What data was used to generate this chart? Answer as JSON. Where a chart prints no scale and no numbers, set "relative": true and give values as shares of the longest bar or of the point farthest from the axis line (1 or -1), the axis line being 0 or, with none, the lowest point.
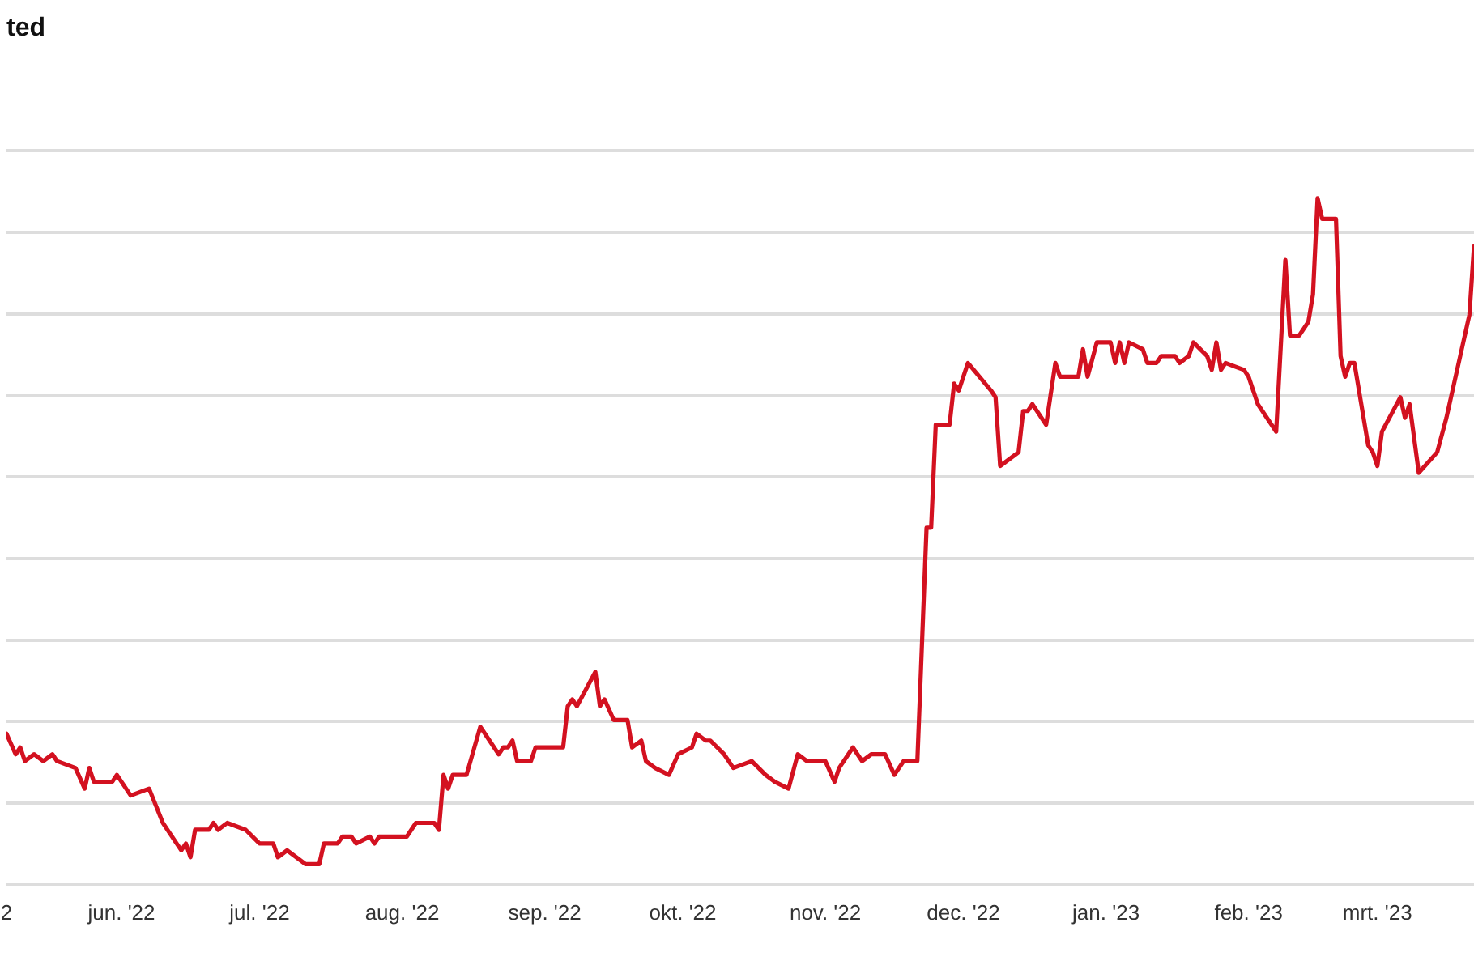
{
  "chart_data": {
    "type": "line",
    "title": "ted",
    "relative": true,
    "grid": "y",
    "xlim": [
      "2022-05-07",
      "2023-03-22"
    ],
    "xticks": [
      {
        "value": "2022-05-07",
        "label": "2"
      },
      {
        "value": "2022-06-01",
        "label": "jun. '22"
      },
      {
        "value": "2022-07-01",
        "label": "jul. '22"
      },
      {
        "value": "2022-08-01",
        "label": "aug. '22"
      },
      {
        "value": "2022-09-01",
        "label": "sep. '22"
      },
      {
        "value": "2022-10-01",
        "label": "okt. '22"
      },
      {
        "value": "2022-11-01",
        "label": "nov. '22"
      },
      {
        "value": "2022-12-01",
        "label": "dec. '22"
      },
      {
        "value": "2023-01-01",
        "label": "jan. '23"
      },
      {
        "value": "2023-02-01",
        "label": "feb. '23"
      },
      {
        "value": "2023-03-01",
        "label": "mrt. '23"
      }
    ],
    "x": [
      "2022-05-07",
      "2022-05-09",
      "2022-05-10",
      "2022-05-11",
      "2022-05-13",
      "2022-05-15",
      "2022-05-17",
      "2022-05-18",
      "2022-05-22",
      "2022-05-24",
      "2022-05-25",
      "2022-05-26",
      "2022-05-27",
      "2022-05-30",
      "2022-05-31",
      "2022-06-01",
      "2022-06-03",
      "2022-06-07",
      "2022-06-10",
      "2022-06-14",
      "2022-06-15",
      "2022-06-16",
      "2022-06-17",
      "2022-06-20",
      "2022-06-21",
      "2022-06-22",
      "2022-06-24",
      "2022-06-28",
      "2022-07-01",
      "2022-07-04",
      "2022-07-05",
      "2022-07-07",
      "2022-07-11",
      "2022-07-14",
      "2022-07-15",
      "2022-07-18",
      "2022-07-19",
      "2022-07-21",
      "2022-07-22",
      "2022-07-25",
      "2022-07-26",
      "2022-07-27",
      "2022-07-28",
      "2022-08-02",
      "2022-08-04",
      "2022-08-05",
      "2022-08-08",
      "2022-08-09",
      "2022-08-10",
      "2022-08-11",
      "2022-08-12",
      "2022-08-15",
      "2022-08-18",
      "2022-08-22",
      "2022-08-23",
      "2022-08-24",
      "2022-08-25",
      "2022-08-26",
      "2022-08-29",
      "2022-08-30",
      "2022-09-01",
      "2022-09-05",
      "2022-09-06",
      "2022-09-07",
      "2022-09-08",
      "2022-09-12",
      "2022-09-13",
      "2022-09-14",
      "2022-09-16",
      "2022-09-19",
      "2022-09-20",
      "2022-09-22",
      "2022-09-23",
      "2022-09-25",
      "2022-09-28",
      "2022-09-30",
      "2022-10-03",
      "2022-10-04",
      "2022-10-06",
      "2022-10-07",
      "2022-10-10",
      "2022-10-12",
      "2022-10-16",
      "2022-10-19",
      "2022-10-21",
      "2022-10-24",
      "2022-10-26",
      "2022-10-28",
      "2022-11-01",
      "2022-11-03",
      "2022-11-04",
      "2022-11-07",
      "2022-11-09",
      "2022-11-11",
      "2022-11-14",
      "2022-11-16",
      "2022-11-18",
      "2022-11-21",
      "2022-11-23",
      "2022-11-24",
      "2022-11-25",
      "2022-11-28",
      "2022-11-29",
      "2022-11-30",
      "2022-12-02",
      "2022-12-07",
      "2022-12-08",
      "2022-12-09",
      "2022-12-13",
      "2022-12-14",
      "2022-12-15",
      "2022-12-16",
      "2022-12-19",
      "2022-12-21",
      "2022-12-22",
      "2022-12-26",
      "2022-12-27",
      "2022-12-28",
      "2022-12-30",
      "2023-01-02",
      "2023-01-03",
      "2023-01-04",
      "2023-01-05",
      "2023-01-06",
      "2023-01-09",
      "2023-01-10",
      "2023-01-12",
      "2023-01-13",
      "2023-01-16",
      "2023-01-17",
      "2023-01-19",
      "2023-01-20",
      "2023-01-23",
      "2023-01-24",
      "2023-01-25",
      "2023-01-26",
      "2023-01-27",
      "2023-01-31",
      "2023-02-01",
      "2023-02-03",
      "2023-02-05",
      "2023-02-07",
      "2023-02-09",
      "2023-02-10",
      "2023-02-12",
      "2023-02-14",
      "2023-02-15",
      "2023-02-16",
      "2023-02-17",
      "2023-02-20",
      "2023-02-21",
      "2023-02-22",
      "2023-02-23",
      "2023-02-24",
      "2023-02-27",
      "2023-02-28",
      "2023-03-01",
      "2023-03-02",
      "2023-03-06",
      "2023-03-07",
      "2023-03-08",
      "2023-03-10",
      "2023-03-14",
      "2023-03-16",
      "2023-03-21",
      "2023-03-22"
    ],
    "series": [
      {
        "color": "#d31120",
        "values": [
          0.22,
          0.19,
          0.2,
          0.18,
          0.19,
          0.18,
          0.19,
          0.18,
          0.17,
          0.14,
          0.17,
          0.15,
          0.15,
          0.15,
          0.16,
          0.15,
          0.13,
          0.14,
          0.09,
          0.05,
          0.06,
          0.04,
          0.08,
          0.08,
          0.09,
          0.08,
          0.09,
          0.08,
          0.06,
          0.06,
          0.04,
          0.05,
          0.03,
          0.03,
          0.06,
          0.06,
          0.07,
          0.07,
          0.06,
          0.07,
          0.06,
          0.07,
          0.07,
          0.07,
          0.09,
          0.09,
          0.09,
          0.08,
          0.16,
          0.14,
          0.16,
          0.16,
          0.23,
          0.19,
          0.2,
          0.2,
          0.21,
          0.18,
          0.18,
          0.2,
          0.2,
          0.2,
          0.26,
          0.27,
          0.26,
          0.31,
          0.26,
          0.27,
          0.24,
          0.24,
          0.2,
          0.21,
          0.18,
          0.17,
          0.16,
          0.19,
          0.2,
          0.22,
          0.21,
          0.21,
          0.19,
          0.17,
          0.18,
          0.16,
          0.15,
          0.14,
          0.19,
          0.18,
          0.18,
          0.15,
          0.17,
          0.2,
          0.18,
          0.19,
          0.19,
          0.16,
          0.18,
          0.18,
          0.52,
          0.52,
          0.67,
          0.67,
          0.73,
          0.72,
          0.76,
          0.72,
          0.71,
          0.61,
          0.63,
          0.69,
          0.69,
          0.7,
          0.67,
          0.76,
          0.74,
          0.74,
          0.78,
          0.74,
          0.79,
          0.79,
          0.76,
          0.79,
          0.76,
          0.79,
          0.78,
          0.76,
          0.76,
          0.77,
          0.77,
          0.76,
          0.77,
          0.79,
          0.77,
          0.75,
          0.79,
          0.75,
          0.76,
          0.75,
          0.74,
          0.7,
          0.68,
          0.66,
          0.91,
          0.8,
          0.8,
          0.82,
          0.86,
          1.0,
          0.97,
          0.97,
          0.77,
          0.74,
          0.76,
          0.76,
          0.64,
          0.63,
          0.61,
          0.66,
          0.71,
          0.68,
          0.7,
          0.6,
          0.63,
          0.68,
          0.83,
          0.93
        ]
      }
    ]
  }
}
